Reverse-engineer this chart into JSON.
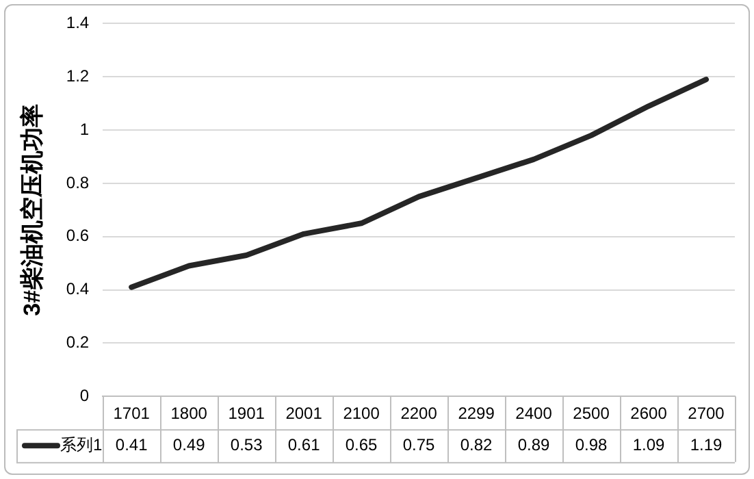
{
  "chart_data": {
    "type": "line",
    "ylabel": "3#柴油机空压机功率",
    "categories": [
      "1701",
      "1800",
      "1901",
      "2001",
      "2100",
      "2200",
      "2299",
      "2400",
      "2500",
      "2600",
      "2700"
    ],
    "series": [
      {
        "name": "系列1",
        "color": "#262626",
        "values": [
          0.41,
          0.49,
          0.53,
          0.61,
          0.65,
          0.75,
          0.82,
          0.89,
          0.98,
          1.09,
          1.19
        ]
      }
    ],
    "ylim": [
      0,
      1.4
    ],
    "yticks": [
      0,
      0.2,
      0.4,
      0.6,
      0.8,
      1,
      1.2,
      1.4
    ],
    "grid": "y",
    "legend": "bottom",
    "marker": "none",
    "line_style": "solid",
    "data_labels": true
  }
}
